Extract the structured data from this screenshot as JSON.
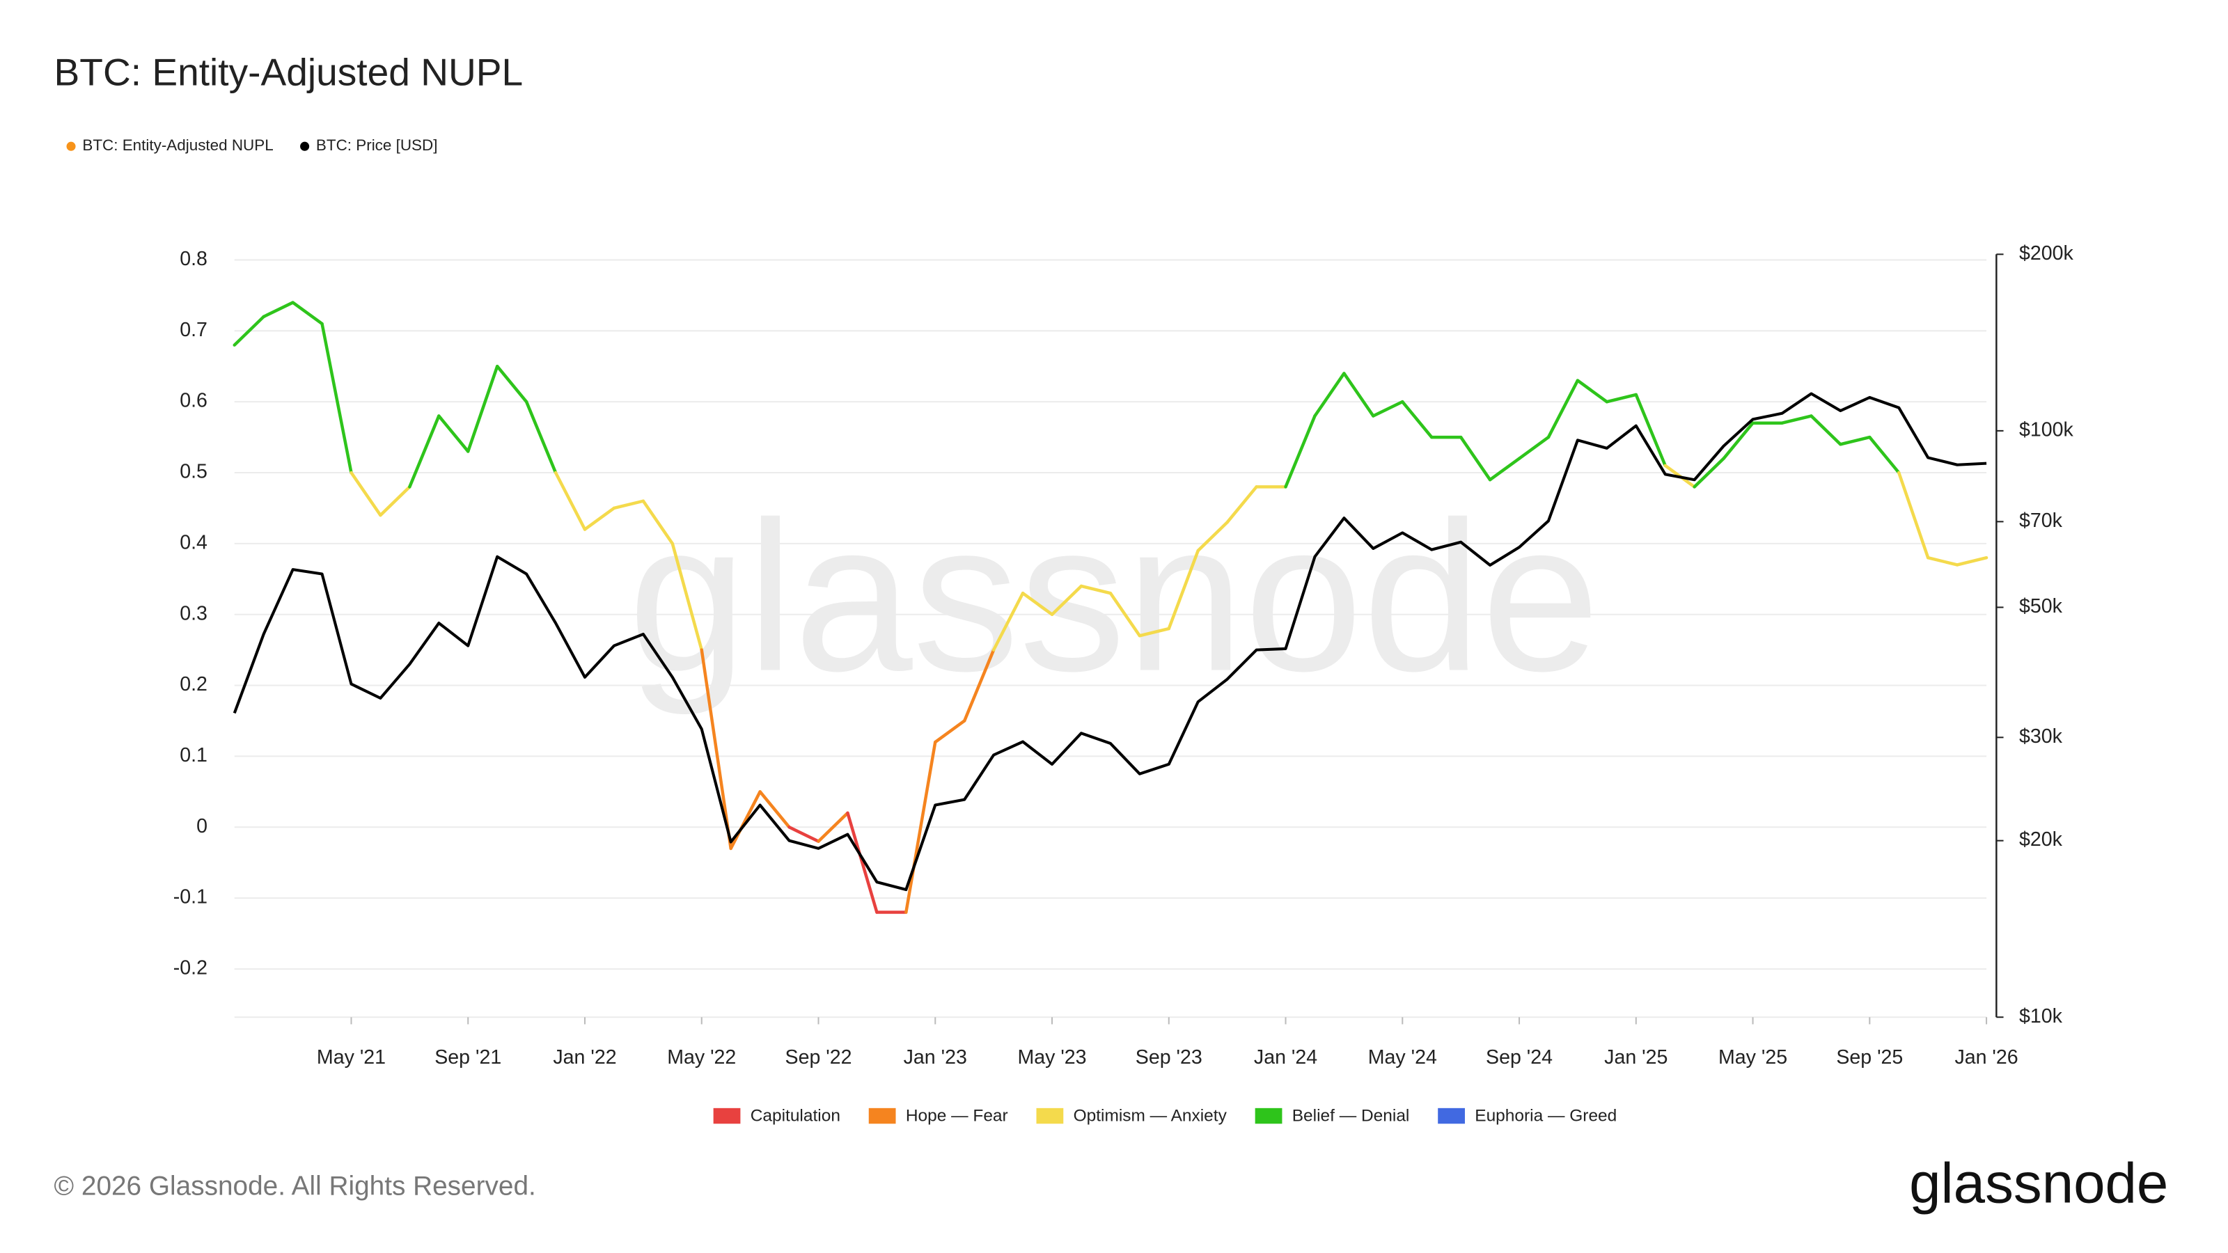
{
  "chart_data": {
    "type": "line",
    "title": "BTC: Entity-Adjusted NUPL",
    "x": [
      "2021-01",
      "2021-02",
      "2021-03",
      "2021-04",
      "2021-05",
      "2021-06",
      "2021-07",
      "2021-08",
      "2021-09",
      "2021-10",
      "2021-11",
      "2021-12",
      "2022-01",
      "2022-02",
      "2022-03",
      "2022-04",
      "2022-05",
      "2022-06",
      "2022-07",
      "2022-08",
      "2022-09",
      "2022-10",
      "2022-11",
      "2022-12",
      "2023-01",
      "2023-02",
      "2023-03",
      "2023-04",
      "2023-05",
      "2023-06",
      "2023-07",
      "2023-08",
      "2023-09",
      "2023-10",
      "2023-11",
      "2023-12",
      "2024-01",
      "2024-02",
      "2024-03",
      "2024-04",
      "2024-05",
      "2024-06",
      "2024-07",
      "2024-08",
      "2024-09",
      "2024-10",
      "2024-11",
      "2024-12",
      "2025-01",
      "2025-02",
      "2025-03",
      "2025-04",
      "2025-05",
      "2025-06",
      "2025-07",
      "2025-08",
      "2025-09",
      "2025-10",
      "2025-11",
      "2025-12",
      "2026-01"
    ],
    "series": [
      {
        "name": "BTC: Entity-Adjusted NUPL",
        "color": "#f7931a",
        "values": [
          0.68,
          0.72,
          0.74,
          0.71,
          0.5,
          0.44,
          0.48,
          0.58,
          0.53,
          0.65,
          0.6,
          0.5,
          0.42,
          0.45,
          0.46,
          0.4,
          0.25,
          -0.03,
          0.05,
          0.0,
          -0.02,
          0.02,
          -0.12,
          -0.12,
          0.12,
          0.15,
          0.25,
          0.33,
          0.3,
          0.34,
          0.33,
          0.27,
          0.28,
          0.39,
          0.43,
          0.48,
          0.48,
          0.58,
          0.64,
          0.58,
          0.6,
          0.55,
          0.55,
          0.49,
          0.52,
          0.55,
          0.63,
          0.6,
          0.61,
          0.51,
          0.48,
          0.52,
          0.57,
          0.57,
          0.58,
          0.54,
          0.55,
          0.5,
          0.38,
          0.37,
          0.38
        ]
      },
      {
        "name": "BTC: Price [USD]",
        "color": "#000000",
        "axis": "y2",
        "values": [
          33000,
          45000,
          58000,
          57000,
          37000,
          35000,
          40000,
          47000,
          43000,
          61000,
          57000,
          47000,
          38000,
          43000,
          45000,
          38000,
          31000,
          19900,
          23000,
          20000,
          19400,
          20500,
          17000,
          16500,
          23000,
          23500,
          28000,
          29500,
          27000,
          30500,
          29300,
          26000,
          27000,
          34500,
          37700,
          42300,
          42500,
          61000,
          71000,
          63000,
          67000,
          62700,
          64600,
          59000,
          63300,
          70200,
          96400,
          93400,
          102000,
          84300,
          82500,
          94200,
          104600,
          107100,
          115700,
          108200,
          114000,
          109500,
          90000,
          87500,
          88000
        ]
      }
    ],
    "zones": [
      {
        "name": "Capitulation",
        "color": "#e8413f",
        "max": 0
      },
      {
        "name": "Hope — Fear",
        "color": "#f5841f",
        "min": 0,
        "max": 0.25
      },
      {
        "name": "Optimism — Anxiety",
        "color": "#f4da4c",
        "min": 0.25,
        "max": 0.5
      },
      {
        "name": "Belief — Denial",
        "color": "#2ec41b",
        "min": 0.5,
        "max": 0.75
      },
      {
        "name": "Euphoria — Greed",
        "color": "#4169e1",
        "min": 0.75
      }
    ],
    "xlim": [
      "2021-01",
      "2026-01"
    ],
    "xticks": [
      {
        "value": "2021-05",
        "label": "May '21"
      },
      {
        "value": "2021-09",
        "label": "Sep '21"
      },
      {
        "value": "2022-01",
        "label": "Jan '22"
      },
      {
        "value": "2022-05",
        "label": "May '22"
      },
      {
        "value": "2022-09",
        "label": "Sep '22"
      },
      {
        "value": "2023-01",
        "label": "Jan '23"
      },
      {
        "value": "2023-05",
        "label": "May '23"
      },
      {
        "value": "2023-09",
        "label": "Sep '23"
      },
      {
        "value": "2024-01",
        "label": "Jan '24"
      },
      {
        "value": "2024-05",
        "label": "May '24"
      },
      {
        "value": "2024-09",
        "label": "Sep '24"
      },
      {
        "value": "2025-01",
        "label": "Jan '25"
      },
      {
        "value": "2025-05",
        "label": "May '25"
      },
      {
        "value": "2025-09",
        "label": "Sep '25"
      },
      {
        "value": "2026-01",
        "label": "Jan '26"
      }
    ],
    "ylim": [
      -0.268,
      0.808
    ],
    "yticks": [
      0.8,
      0.7,
      0.6,
      0.5,
      0.4,
      0.3,
      0.2,
      0.1,
      0,
      -0.1,
      -0.2
    ],
    "y2lim": [
      10000,
      200000
    ],
    "y2_log": true,
    "y2ticks": [
      {
        "value": 200000,
        "label": "$200k"
      },
      {
        "value": 100000,
        "label": "$100k"
      },
      {
        "value": 70000,
        "label": "$70k"
      },
      {
        "value": 50000,
        "label": "$50k"
      },
      {
        "value": 30000,
        "label": "$30k"
      },
      {
        "value": 20000,
        "label": "$20k"
      },
      {
        "value": 10000,
        "label": "$10k"
      }
    ],
    "grid": true,
    "watermark": "glassnode",
    "copyright": "© 2026 Glassnode. All Rights Reserved.",
    "logo": "glassnode"
  }
}
